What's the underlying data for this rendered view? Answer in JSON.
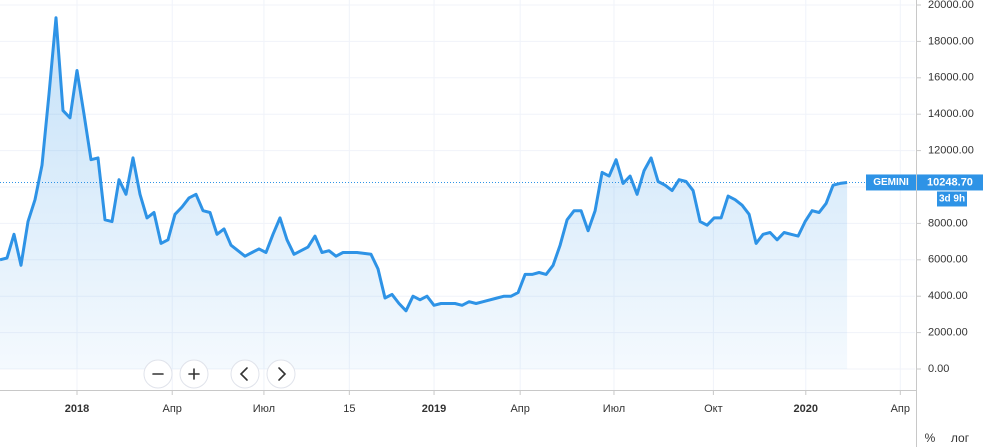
{
  "chart_data": {
    "type": "line",
    "series": [
      {
        "name": "GEMINI",
        "color": "#2e93e6",
        "x": [
          0,
          1,
          2,
          3,
          4,
          5,
          6,
          7,
          8,
          9,
          10,
          11,
          12,
          13,
          14,
          15,
          16,
          17,
          18,
          19,
          20,
          21,
          22,
          23,
          24,
          25,
          26,
          27,
          28,
          29,
          30,
          31,
          32,
          33,
          34,
          35,
          36,
          37,
          38,
          39,
          40,
          41,
          42,
          43,
          44,
          45,
          46,
          47,
          48,
          49,
          51,
          53,
          54,
          55,
          56,
          57,
          58,
          59,
          60,
          61,
          62,
          63,
          65,
          66,
          67,
          68,
          69,
          71,
          72,
          73,
          74,
          75,
          76,
          77,
          78,
          79,
          80,
          81,
          82,
          83,
          84,
          85,
          86,
          87,
          88,
          89,
          90,
          91,
          92,
          93,
          94,
          95,
          96,
          97,
          98,
          99,
          100,
          101,
          102,
          103,
          104,
          105,
          106,
          107,
          108,
          109,
          110,
          111,
          112,
          113,
          114,
          115,
          116,
          117,
          118,
          119,
          120,
          121
        ],
        "values": [
          6000,
          6100,
          7400,
          5700,
          8100,
          9300,
          11200,
          15100,
          19300,
          14200,
          13800,
          16400,
          14000,
          11500,
          11600,
          8200,
          8100,
          10400,
          9600,
          11600,
          9600,
          8300,
          8600,
          6900,
          7100,
          8500,
          8900,
          9400,
          9600,
          8700,
          8600,
          7400,
          7700,
          6800,
          6500,
          6200,
          6400,
          6600,
          6400,
          7400,
          8300,
          7100,
          6300,
          6500,
          6700,
          7300,
          6400,
          6500,
          6200,
          6400,
          6400,
          6300,
          5500,
          3900,
          4100,
          3600,
          3200,
          4000,
          3800,
          4000,
          3500,
          3600,
          3600,
          3500,
          3700,
          3600,
          3700,
          3900,
          4000,
          4000,
          4200,
          5200,
          5200,
          5300,
          5200,
          5700,
          6800,
          8200,
          8700,
          8700,
          7600,
          8700,
          10800,
          10600,
          11500,
          10200,
          10600,
          9600,
          10900,
          11600,
          10300,
          10100,
          9800,
          10400,
          10300,
          9800,
          8100,
          7900,
          8300,
          8300,
          9500,
          9300,
          9000,
          8500,
          6900,
          7400,
          7500,
          7100,
          7500,
          7400,
          7300,
          8100,
          8700,
          8600,
          9100,
          10100,
          10200,
          10248.7
        ]
      }
    ],
    "last_value_label": "10248.70",
    "countdown": "3d 9h",
    "xlim": [
      0,
      130.7
    ],
    "xticks": [
      {
        "value": 11,
        "label": "2018"
      },
      {
        "value": 24.6,
        "label": "Апр"
      },
      {
        "value": 37.7,
        "label": "Июл"
      },
      {
        "value": 49.9,
        "label": "15"
      },
      {
        "value": 62,
        "label": "2019"
      },
      {
        "value": 74.3,
        "label": "Апр"
      },
      {
        "value": 87.7,
        "label": "Июл"
      },
      {
        "value": 101.9,
        "label": "Окт"
      },
      {
        "value": 115.1,
        "label": "2020"
      },
      {
        "value": 128.6,
        "label": "Апр"
      }
    ],
    "ylim": [
      -1154,
      20000
    ],
    "yticks": [
      {
        "value": 0,
        "label": "0.00"
      },
      {
        "value": 2000,
        "label": "2000.00"
      },
      {
        "value": 4000,
        "label": "4000.00"
      },
      {
        "value": 6000,
        "label": "6000.00"
      },
      {
        "value": 8000,
        "label": "8000.00"
      },
      {
        "value": 10000,
        "label": "10000.00"
      },
      {
        "value": 12000,
        "label": "12000.00"
      },
      {
        "value": 14000,
        "label": "14000.00"
      },
      {
        "value": 16000,
        "label": "16000.00"
      },
      {
        "value": 18000,
        "label": "18000.00"
      },
      {
        "value": 20000,
        "label": "20000.00"
      }
    ],
    "grid": true,
    "scale_buttons": [
      "%",
      "лог"
    ]
  }
}
